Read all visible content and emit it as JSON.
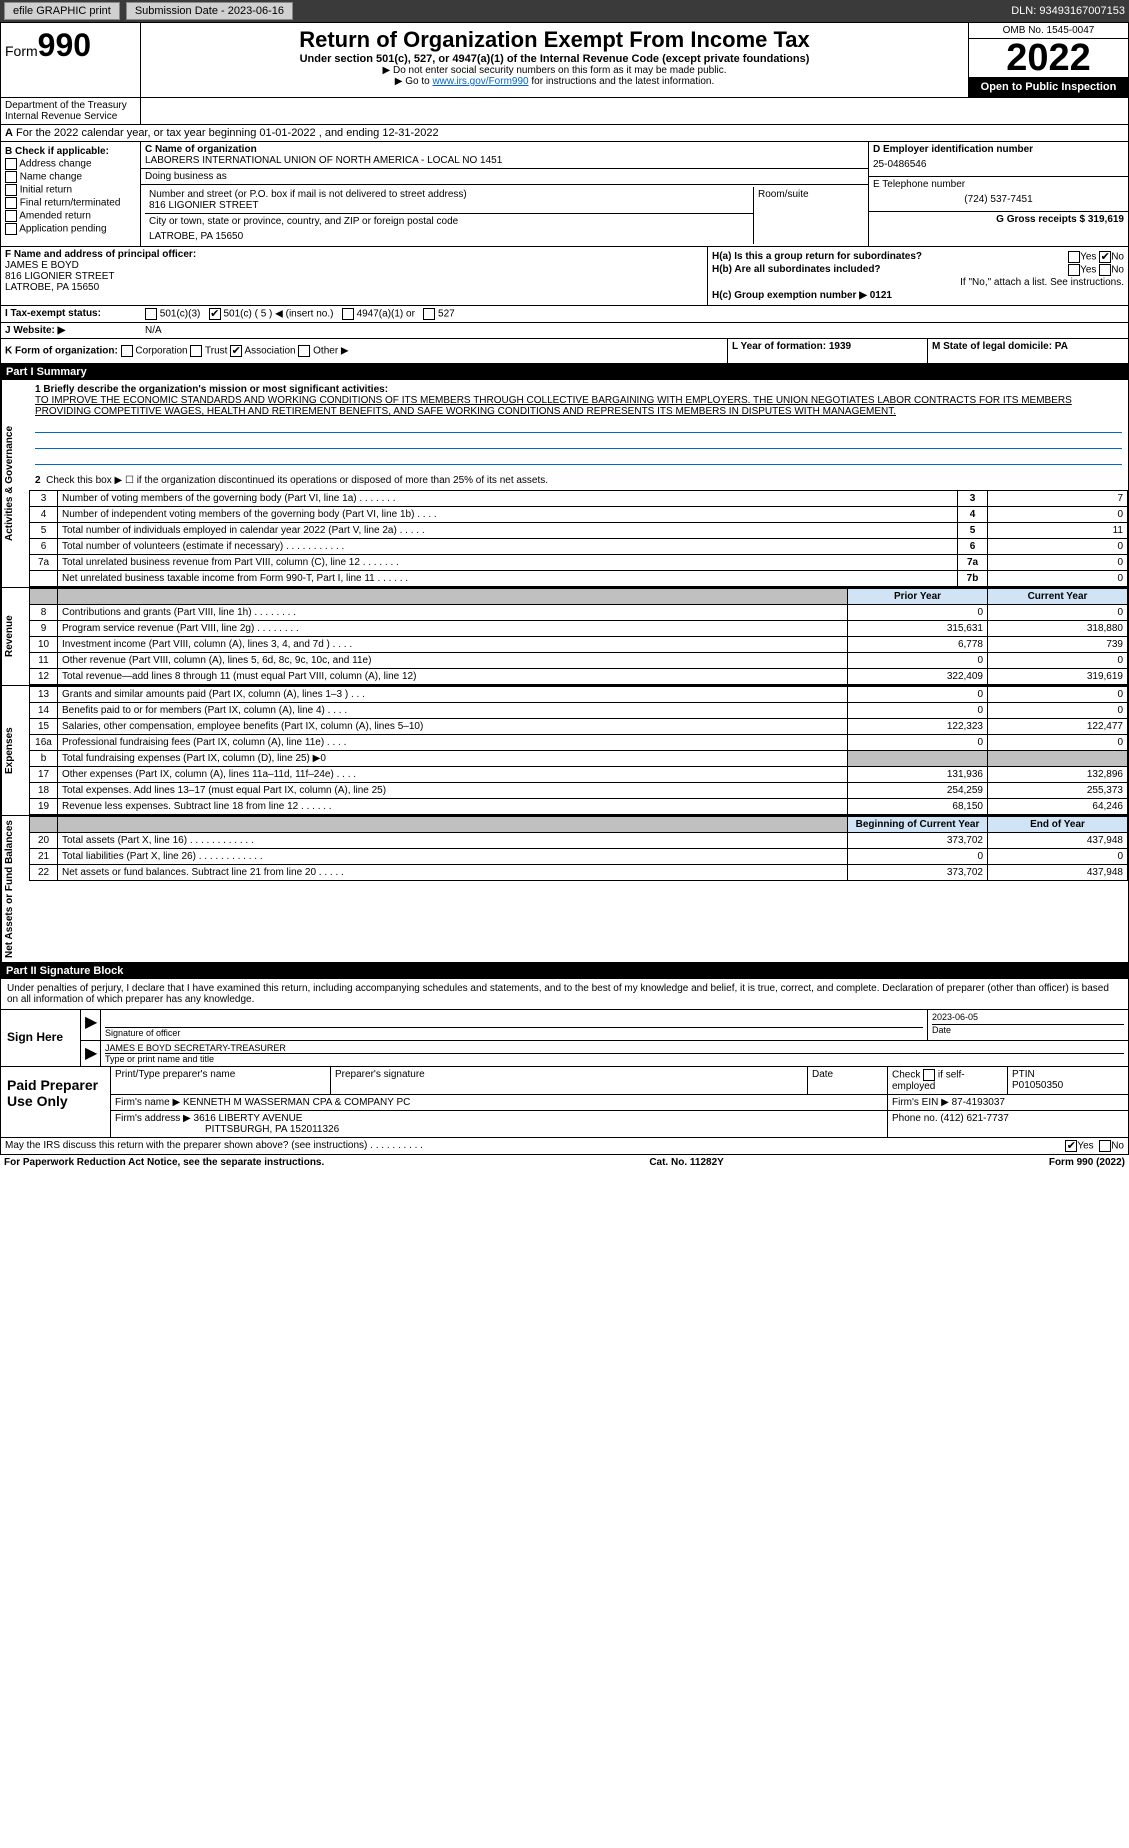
{
  "topbar": {
    "efile": "efile GRAPHIC print",
    "subdate_lbl": "Submission Date - 2023-06-16",
    "dln_lbl": "DLN: 93493167007153"
  },
  "header": {
    "form_prefix": "Form",
    "form_num": "990",
    "title": "Return of Organization Exempt From Income Tax",
    "subtitle": "Under section 501(c), 527, or 4947(a)(1) of the Internal Revenue Code (except private foundations)",
    "note1": "▶ Do not enter social security numbers on this form as it may be made public.",
    "note2_pre": "▶ Go to ",
    "note2_link": "www.irs.gov/Form990",
    "note2_post": " for instructions and the latest information.",
    "omb": "OMB No. 1545-0047",
    "year": "2022",
    "open": "Open to Public Inspection",
    "dept": "Department of the Treasury Internal Revenue Service"
  },
  "rowA": {
    "label_a": "A",
    "text": "For the 2022 calendar year, or tax year beginning 01-01-2022    , and ending 12-31-2022"
  },
  "blockB": {
    "label": "B Check if applicable:",
    "opts": [
      "Address change",
      "Name change",
      "Initial return",
      "Final return/terminated",
      "Amended return",
      "Application pending"
    ]
  },
  "blockC": {
    "name_lbl": "C Name of organization",
    "name": "LABORERS INTERNATIONAL UNION OF NORTH AMERICA - LOCAL NO 1451",
    "dba_lbl": "Doing business as",
    "dba": "",
    "street_lbl": "Number and street (or P.O. box if mail is not delivered to street address)",
    "room_lbl": "Room/suite",
    "street": "816 LIGONIER STREET",
    "city_lbl": "City or town, state or province, country, and ZIP or foreign postal code",
    "city": "LATROBE, PA  15650"
  },
  "blockD": {
    "ein_lbl": "D Employer identification number",
    "ein": "25-0486546",
    "phone_lbl": "E Telephone number",
    "phone": "(724) 537-7451",
    "gross_lbl": "G Gross receipts $ 319,619"
  },
  "blockF": {
    "label": "F  Name and address of principal officer:",
    "name": "JAMES E BOYD",
    "street": "816 LIGONIER STREET",
    "city": "LATROBE, PA  15650"
  },
  "blockH": {
    "ha": "H(a)  Is this a group return for subordinates?",
    "hb": "H(b)  Are all subordinates included?",
    "hb_note": "If \"No,\" attach a list. See instructions.",
    "hc": "H(c)  Group exemption number ▶   0121",
    "yes": "Yes",
    "no": "No"
  },
  "rowI": {
    "label": "I   Tax-exempt status:",
    "o1": "501(c)(3)",
    "o2": "501(c) ( 5 ) ◀ (insert no.)",
    "o3": "4947(a)(1) or",
    "o4": "527"
  },
  "rowJ": {
    "label": "J   Website: ▶",
    "val": "N/A"
  },
  "rowK": {
    "label": "K Form of organization:",
    "o1": "Corporation",
    "o2": "Trust",
    "o3": "Association",
    "o4": "Other ▶"
  },
  "rowL": {
    "label": "L Year of formation: 1939"
  },
  "rowM": {
    "label": "M State of legal domicile: PA"
  },
  "part1": {
    "hdr": "Part I      Summary",
    "q1_lbl": "1  Briefly describe the organization's mission or most significant activities:",
    "q1_text": "TO IMPROVE THE ECONOMIC STANDARDS AND WORKING CONDITIONS OF ITS MEMBERS THROUGH COLLECTIVE BARGAINING WITH EMPLOYERS. THE UNION NEGOTIATES LABOR CONTRACTS FOR ITS MEMBERS PROVIDING COMPETITIVE WAGES, HEALTH AND RETIREMENT BENEFITS, AND SAFE WORKING CONDITIONS AND REPRESENTS ITS MEMBERS IN DISPUTES WITH MANAGEMENT.",
    "q2": "Check this box ▶ ☐  if the organization discontinued its operations or disposed of more than 25% of its net assets.",
    "side_gov": "Activities & Governance",
    "side_rev": "Revenue",
    "side_exp": "Expenses",
    "side_net": "Net Assets or Fund Balances",
    "prior_hdr": "Prior Year",
    "curr_hdr": "Current Year",
    "boy_hdr": "Beginning of Current Year",
    "eoy_hdr": "End of Year"
  },
  "gov_rows": [
    {
      "n": "3",
      "d": "Number of voting members of the governing body (Part VI, line 1a)   .    .    .    .    .    .    .",
      "b": "3",
      "v": "7"
    },
    {
      "n": "4",
      "d": "Number of independent voting members of the governing body (Part VI, line 1b)   .    .    .    .",
      "b": "4",
      "v": "0"
    },
    {
      "n": "5",
      "d": "Total number of individuals employed in calendar year 2022 (Part V, line 2a)   .    .    .    .    .",
      "b": "5",
      "v": "11"
    },
    {
      "n": "6",
      "d": "Total number of volunteers (estimate if necessary)   .    .    .    .    .    .    .    .    .    .    .",
      "b": "6",
      "v": "0"
    },
    {
      "n": "7a",
      "d": "Total unrelated business revenue from Part VIII, column (C), line 12   .    .    .    .    .    .    .",
      "b": "7a",
      "v": "0"
    },
    {
      "n": "",
      "d": "Net unrelated business taxable income from Form 990-T, Part I, line 11   .    .    .    .    .    .",
      "b": "7b",
      "v": "0"
    }
  ],
  "rev_rows": [
    {
      "n": "8",
      "d": "Contributions and grants (Part VIII, line 1h)   .    .    .    .    .    .    .    .",
      "p": "0",
      "c": "0"
    },
    {
      "n": "9",
      "d": "Program service revenue (Part VIII, line 2g)   .    .    .    .    .    .    .    .",
      "p": "315,631",
      "c": "318,880"
    },
    {
      "n": "10",
      "d": "Investment income (Part VIII, column (A), lines 3, 4, and 7d )   .    .    .    .",
      "p": "6,778",
      "c": "739"
    },
    {
      "n": "11",
      "d": "Other revenue (Part VIII, column (A), lines 5, 6d, 8c, 9c, 10c, and 11e)",
      "p": "0",
      "c": "0"
    },
    {
      "n": "12",
      "d": "Total revenue—add lines 8 through 11 (must equal Part VIII, column (A), line 12)",
      "p": "322,409",
      "c": "319,619"
    }
  ],
  "exp_rows": [
    {
      "n": "13",
      "d": "Grants and similar amounts paid (Part IX, column (A), lines 1–3 )   .    .    .",
      "p": "0",
      "c": "0"
    },
    {
      "n": "14",
      "d": "Benefits paid to or for members (Part IX, column (A), line 4)   .    .    .    .",
      "p": "0",
      "c": "0"
    },
    {
      "n": "15",
      "d": "Salaries, other compensation, employee benefits (Part IX, column (A), lines 5–10)",
      "p": "122,323",
      "c": "122,477"
    },
    {
      "n": "16a",
      "d": "Professional fundraising fees (Part IX, column (A), line 11e)   .    .    .    .",
      "p": "0",
      "c": "0"
    },
    {
      "n": "b",
      "d": "Total fundraising expenses (Part IX, column (D), line 25) ▶0",
      "p": "",
      "c": "",
      "shade": true
    },
    {
      "n": "17",
      "d": "Other expenses (Part IX, column (A), lines 11a–11d, 11f–24e)   .    .    .    .",
      "p": "131,936",
      "c": "132,896"
    },
    {
      "n": "18",
      "d": "Total expenses. Add lines 13–17 (must equal Part IX, column (A), line 25)",
      "p": "254,259",
      "c": "255,373"
    },
    {
      "n": "19",
      "d": "Revenue less expenses. Subtract line 18 from line 12   .    .    .    .    .    .",
      "p": "68,150",
      "c": "64,246"
    }
  ],
  "net_rows": [
    {
      "n": "20",
      "d": "Total assets (Part X, line 16)   .    .    .    .    .    .    .    .    .    .    .    .",
      "p": "373,702",
      "c": "437,948"
    },
    {
      "n": "21",
      "d": "Total liabilities (Part X, line 26)   .    .    .    .    .    .    .    .    .    .    .    .",
      "p": "0",
      "c": "0"
    },
    {
      "n": "22",
      "d": "Net assets or fund balances. Subtract line 21 from line 20   .    .    .    .    .",
      "p": "373,702",
      "c": "437,948"
    }
  ],
  "part2": {
    "hdr": "Part II      Signature Block",
    "intro": "Under penalties of perjury, I declare that I have examined this return, including accompanying schedules and statements, and to the best of my knowledge and belief, it is true, correct, and complete. Declaration of preparer (other than officer) is based on all information of which preparer has any knowledge."
  },
  "sign": {
    "label": "Sign Here",
    "sig_lbl": "Signature of officer",
    "date_lbl": "Date",
    "date": "2023-06-05",
    "name": "JAMES E BOYD  SECRETARY-TREASURER",
    "name_lbl": "Type or print name and title"
  },
  "paid": {
    "label": "Paid Preparer Use Only",
    "h1": "Print/Type preparer's name",
    "h2": "Preparer's signature",
    "h3": "Date",
    "h4_pre": "Check",
    "h4_post": "if self-employed",
    "h5": "PTIN",
    "ptin": "P01050350",
    "firm_name_lbl": "Firm's name    ▶",
    "firm_name": "KENNETH M WASSERMAN CPA & COMPANY PC",
    "firm_ein_lbl": "Firm's EIN ▶ 87-4193037",
    "firm_addr_lbl": "Firm's address ▶",
    "firm_addr1": "3616 LIBERTY AVENUE",
    "firm_addr2": "PITTSBURGH, PA  152011326",
    "phone_lbl": "Phone no. (412) 621-7737"
  },
  "footer": {
    "discuss": "May the IRS discuss this return with the preparer shown above? (see instructions)   .    .    .    .    .    .    .    .    .    .",
    "yes": "Yes",
    "no": "No",
    "paperwork": "For Paperwork Reduction Act Notice, see the separate instructions.",
    "cat": "Cat. No. 11282Y",
    "formref": "Form 990 (2022)"
  }
}
